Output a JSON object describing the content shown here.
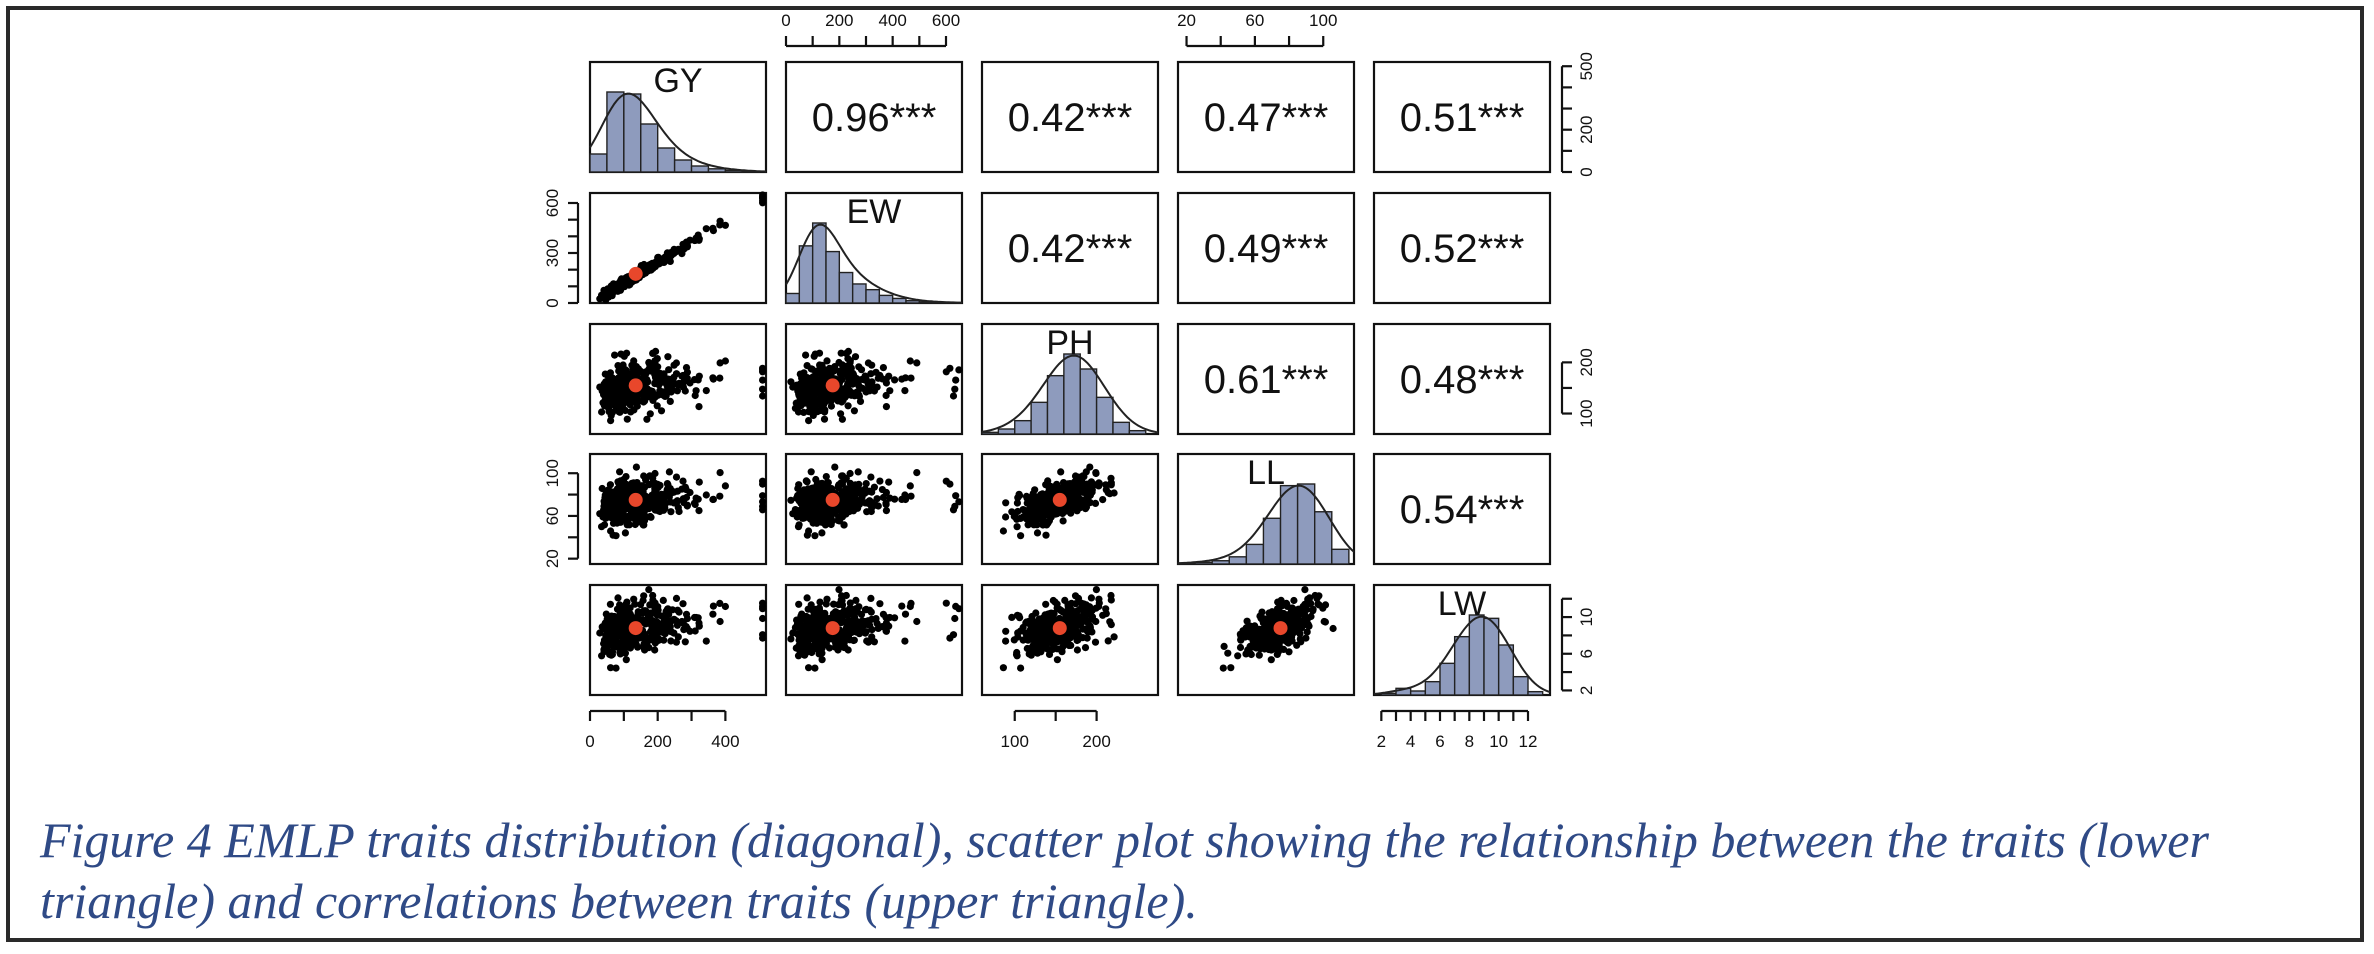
{
  "figure": {
    "caption": "Figure 4 EMLP traits distribution (diagonal), scatter plot showing the relationship between the traits (lower triangle) and correlations between traits (upper triangle)."
  },
  "colors": {
    "histogram_fill": "#8e9bbd",
    "scatter_point": "#000000",
    "mean_point": "#e8472b",
    "caption_text": "#2f4a86"
  },
  "chart_data": {
    "type": "scatter",
    "traits": [
      "GY",
      "EW",
      "PH",
      "LL",
      "LW"
    ],
    "correlations": [
      {
        "row": "GY",
        "col": "EW",
        "label": "0.96***"
      },
      {
        "row": "GY",
        "col": "PH",
        "label": "0.42***"
      },
      {
        "row": "GY",
        "col": "LL",
        "label": "0.47***"
      },
      {
        "row": "GY",
        "col": "LW",
        "label": "0.51***"
      },
      {
        "row": "EW",
        "col": "PH",
        "label": "0.42***"
      },
      {
        "row": "EW",
        "col": "LL",
        "label": "0.49***"
      },
      {
        "row": "EW",
        "col": "LW",
        "label": "0.52***"
      },
      {
        "row": "PH",
        "col": "LL",
        "label": "0.61***"
      },
      {
        "row": "PH",
        "col": "LW",
        "label": "0.48***"
      },
      {
        "row": "LL",
        "col": "LW",
        "label": "0.54***"
      }
    ],
    "ranges": {
      "GY": [
        0,
        520
      ],
      "EW": [
        0,
        660
      ],
      "PH": [
        60,
        275
      ],
      "LL": [
        15,
        118
      ],
      "LW": [
        1.5,
        13.5
      ]
    },
    "means": {
      "GY": 135,
      "EW": 175,
      "PH": 155,
      "LL": 75,
      "LW": 8.8
    },
    "histograms": {
      "GY": {
        "bins": [
          0,
          50,
          100,
          150,
          200,
          250,
          300,
          350,
          400,
          450,
          500
        ],
        "counts": [
          45,
          200,
          195,
          120,
          60,
          30,
          15,
          8,
          4,
          2
        ]
      },
      "EW": {
        "bins": [
          0,
          50,
          100,
          150,
          200,
          250,
          300,
          350,
          400,
          450,
          500,
          550,
          600,
          650
        ],
        "counts": [
          25,
          150,
          210,
          135,
          80,
          50,
          35,
          20,
          12,
          6,
          3,
          2,
          1
        ]
      },
      "PH": {
        "bins": [
          60,
          80,
          100,
          120,
          140,
          160,
          180,
          200,
          220,
          240,
          260
        ],
        "counts": [
          5,
          15,
          40,
          95,
          175,
          240,
          195,
          110,
          35,
          10
        ]
      },
      "LL": {
        "bins": [
          15,
          25,
          35,
          45,
          55,
          65,
          75,
          85,
          95,
          105,
          115
        ],
        "counts": [
          3,
          5,
          10,
          22,
          60,
          140,
          240,
          245,
          160,
          45
        ]
      },
      "LW": {
        "bins": [
          2,
          3,
          4,
          5,
          6,
          7,
          8,
          9,
          10,
          11,
          12,
          13
        ],
        "counts": [
          5,
          20,
          12,
          40,
          95,
          175,
          240,
          230,
          150,
          55,
          10
        ]
      }
    },
    "axes": {
      "top": {
        "EW": {
          "ticks": [
            0,
            200,
            400,
            600
          ],
          "labels": [
            "0",
            "200",
            "400",
            "600"
          ]
        },
        "LL": {
          "ticks": [
            20,
            60,
            100
          ],
          "labels": [
            "20",
            "60",
            "100"
          ]
        }
      },
      "bottom": {
        "GY": {
          "ticks": [
            0,
            200,
            400
          ],
          "labels": [
            "0",
            "200",
            "400"
          ]
        },
        "PH": {
          "ticks": [
            100,
            200
          ],
          "labels": [
            "100",
            "200"
          ]
        },
        "LW": {
          "ticks": [
            2,
            4,
            6,
            8,
            10,
            12
          ],
          "labels": [
            "2",
            "4",
            "6",
            "8",
            "10",
            "12"
          ]
        }
      },
      "left": {
        "EW": {
          "ticks": [
            0,
            300,
            600
          ],
          "labels": [
            "0",
            "300",
            "600"
          ],
          "minor": [
            100,
            200,
            400,
            500
          ]
        },
        "LL": {
          "ticks": [
            20,
            60,
            100
          ],
          "labels": [
            "20",
            "60",
            "100"
          ],
          "minor": [
            40,
            80
          ]
        }
      },
      "right": {
        "GY": {
          "ticks": [
            0,
            200,
            500
          ],
          "labels": [
            "0",
            "200",
            "500"
          ],
          "minor": [
            100,
            300,
            400
          ],
          "range": [
            0,
            520
          ]
        },
        "PH": {
          "ticks": [
            100,
            200
          ],
          "labels": [
            "100",
            "200"
          ],
          "minor": [
            150
          ],
          "range": [
            60,
            275
          ]
        },
        "LW": {
          "ticks": [
            2,
            6,
            10
          ],
          "labels": [
            "2",
            "6",
            "10"
          ],
          "minor": [
            4,
            8,
            12
          ],
          "range": [
            1.5,
            13.5
          ]
        }
      }
    },
    "scatter_n": 380,
    "grid": false
  }
}
